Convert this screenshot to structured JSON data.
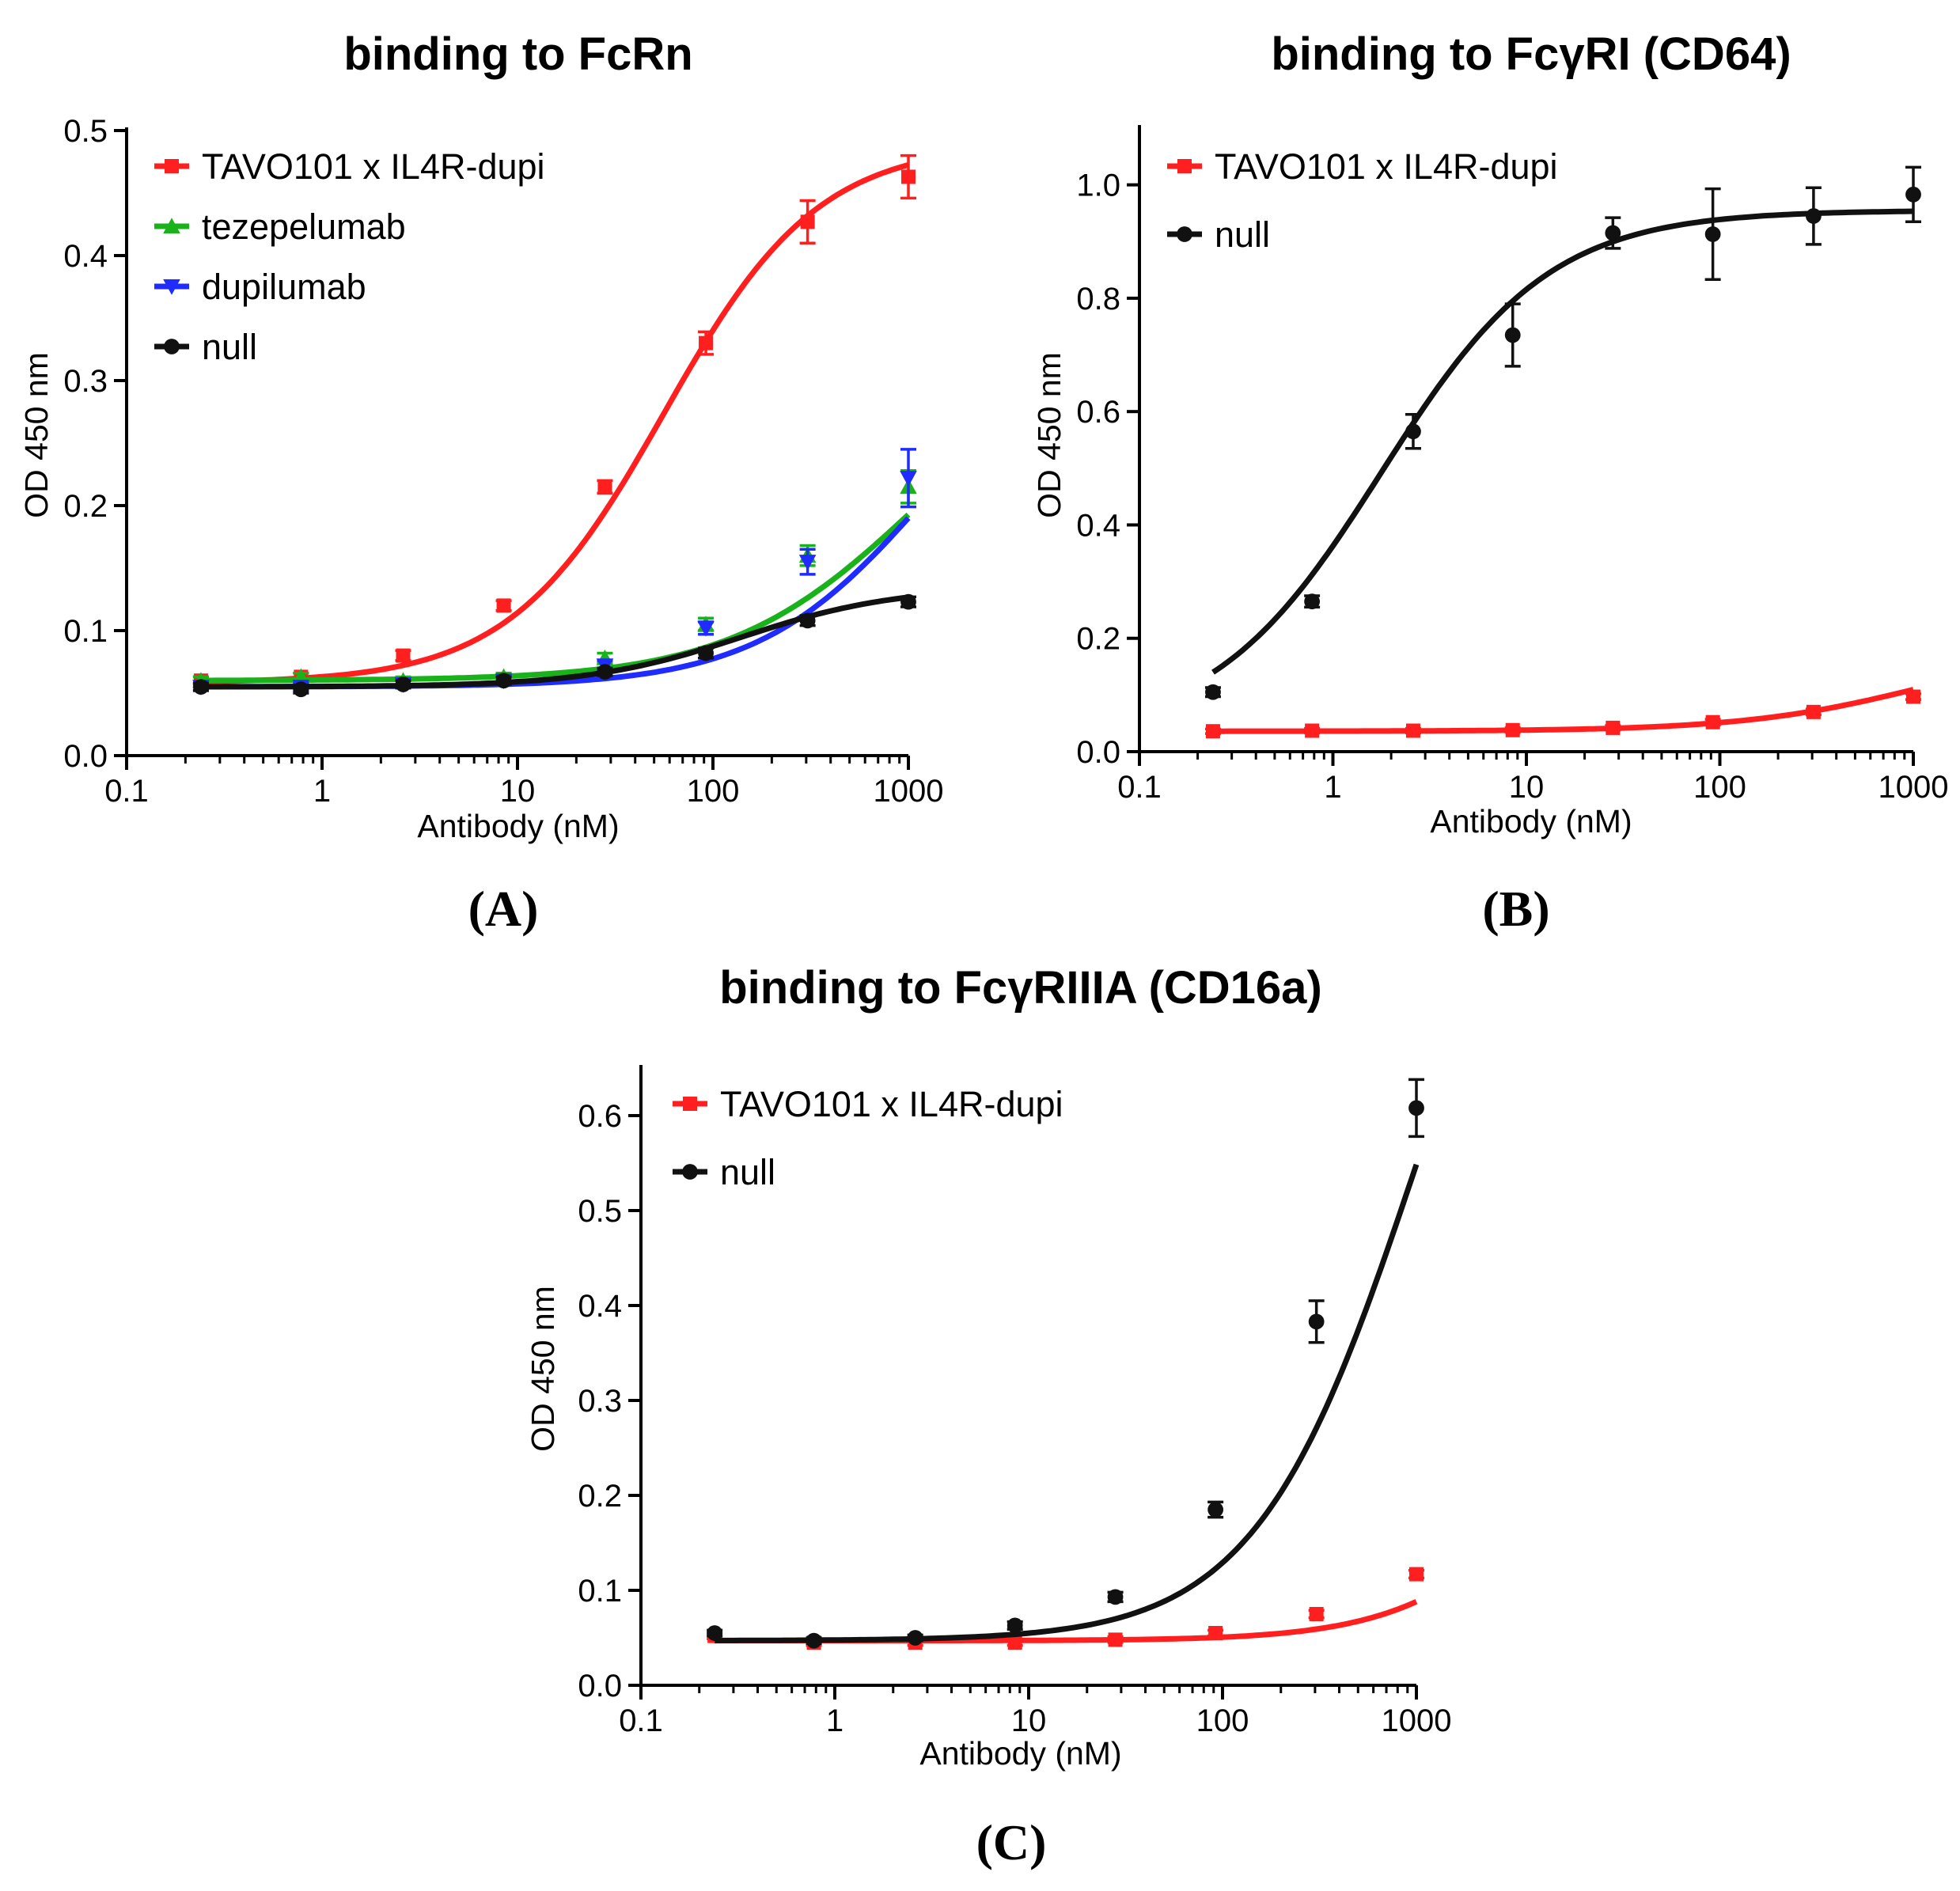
{
  "chart_data": [
    {
      "type": "line",
      "panel_label": "(A)",
      "title": "binding to FcRn",
      "xlabel": "Antibody (nM)",
      "ylabel": "OD 450 nm",
      "xscale": "log",
      "xlim": [
        0.1,
        1000
      ],
      "ylim": [
        0.0,
        0.5
      ],
      "xticks": [
        "0.1",
        "1",
        "10",
        "100",
        "1000"
      ],
      "yticks": [
        "0.0",
        "0.1",
        "0.2",
        "0.3",
        "0.4",
        "0.5"
      ],
      "ytick_values": [
        0,
        0.1,
        0.2,
        0.3,
        0.4,
        0.5
      ],
      "legend_position": "top-left",
      "x": [
        0.24,
        0.78,
        2.6,
        8.5,
        28,
        92,
        305,
        1000
      ],
      "series": [
        {
          "name": "TAVO101 x IL4R-dupi",
          "color": "#ff1f1f",
          "marker": "square",
          "values": [
            0.06,
            0.063,
            0.08,
            0.12,
            0.215,
            0.33,
            0.427,
            0.463
          ],
          "errors": [
            0.003,
            0.003,
            0.004,
            0.004,
            0.005,
            0.009,
            0.017,
            0.017
          ],
          "fit": {
            "bottom": 0.058,
            "top": 0.49,
            "logEC50": 1.75,
            "hill": 1.1
          }
        },
        {
          "name": "tezepelumab",
          "color": "#1ab21a",
          "marker": "triangle-up",
          "values": [
            0.06,
            0.063,
            0.06,
            0.063,
            0.078,
            0.105,
            0.16,
            0.215
          ],
          "errors": [
            0.003,
            0.003,
            0.003,
            0.003,
            0.004,
            0.005,
            0.008,
            0.013
          ],
          "fit": {
            "bottom": 0.06,
            "top": 0.34,
            "logEC50": 3.05,
            "hill": 0.9
          }
        },
        {
          "name": "dupilumab",
          "color": "#1f2bff",
          "marker": "triangle-down",
          "values": [
            0.055,
            0.055,
            0.057,
            0.06,
            0.072,
            0.102,
            0.155,
            0.222
          ],
          "errors": [
            0.003,
            0.003,
            0.003,
            0.003,
            0.004,
            0.005,
            0.01,
            0.023
          ],
          "fit": {
            "bottom": 0.055,
            "top": 0.36,
            "logEC50": 3.1,
            "hill": 1.0
          }
        },
        {
          "name": "null",
          "color": "#111111",
          "marker": "circle",
          "values": [
            0.055,
            0.053,
            0.057,
            0.06,
            0.067,
            0.082,
            0.108,
            0.123
          ],
          "errors": [
            0.003,
            0.003,
            0.003,
            0.003,
            0.003,
            0.004,
            0.004,
            0.004
          ],
          "fit": {
            "bottom": 0.055,
            "top": 0.135,
            "logEC50": 2.15,
            "hill": 1.1
          }
        }
      ]
    },
    {
      "type": "line",
      "panel_label": "(B)",
      "title": "binding to FcγRI (CD64)",
      "xlabel": "Antibody (nM)",
      "ylabel": "OD 450 nm",
      "xscale": "log",
      "xlim": [
        0.1,
        1000
      ],
      "ylim": [
        0.0,
        1.1
      ],
      "xticks": [
        "0.1",
        "1",
        "10",
        "100",
        "1000"
      ],
      "yticks": [
        "0.0",
        "0.2",
        "0.4",
        "0.6",
        "0.8",
        "1.0"
      ],
      "ytick_values": [
        0,
        0.2,
        0.4,
        0.6,
        0.8,
        1.0
      ],
      "legend_position": "top-left",
      "x": [
        0.24,
        0.78,
        2.6,
        8.5,
        28,
        92,
        305,
        1000
      ],
      "series": [
        {
          "name": "TAVO101 x IL4R-dupi",
          "color": "#ff1f1f",
          "marker": "square",
          "values": [
            0.036,
            0.037,
            0.037,
            0.038,
            0.042,
            0.052,
            0.07,
            0.097
          ],
          "errors": [
            0.004,
            0.004,
            0.004,
            0.004,
            0.004,
            0.005,
            0.005,
            0.005
          ],
          "fit": {
            "bottom": 0.036,
            "top": 0.2,
            "logEC50": 3.1,
            "hill": 0.9
          }
        },
        {
          "name": "null",
          "color": "#111111",
          "marker": "circle",
          "values": [
            0.105,
            0.265,
            0.565,
            0.735,
            0.915,
            0.913,
            0.945,
            0.983
          ],
          "errors": [
            0.008,
            0.01,
            0.03,
            0.055,
            0.027,
            0.08,
            0.05,
            0.048
          ],
          "fit": {
            "bottom": 0.03,
            "top": 0.955,
            "logEC50": 0.25,
            "hill": 1.0
          }
        }
      ]
    },
    {
      "type": "line",
      "panel_label": "(C)",
      "title": "binding to FcγRIIIA (CD16a)",
      "xlabel": "Antibody (nM)",
      "ylabel": "OD 450 nm",
      "xscale": "log",
      "xlim": [
        0.1,
        1000
      ],
      "ylim": [
        0.0,
        0.65
      ],
      "xticks": [
        "0.1",
        "1",
        "10",
        "100",
        "1000"
      ],
      "yticks": [
        "0.0",
        "0.1",
        "0.2",
        "0.3",
        "0.4",
        "0.5",
        "0.6"
      ],
      "ytick_values": [
        0,
        0.1,
        0.2,
        0.3,
        0.4,
        0.5,
        0.6
      ],
      "legend_position": "top-left",
      "x": [
        0.24,
        0.78,
        2.6,
        8.5,
        28,
        92,
        305,
        1000
      ],
      "series": [
        {
          "name": "TAVO101 x IL4R-dupi",
          "color": "#ff1f1f",
          "marker": "square",
          "values": [
            0.052,
            0.045,
            0.045,
            0.045,
            0.048,
            0.055,
            0.075,
            0.117
          ],
          "errors": [
            0.003,
            0.003,
            0.003,
            0.003,
            0.003,
            0.003,
            0.004,
            0.004
          ],
          "fit": {
            "bottom": 0.047,
            "top": 0.4,
            "logEC50": 3.8,
            "hill": 1.1
          }
        },
        {
          "name": "null",
          "color": "#111111",
          "marker": "circle",
          "values": [
            0.055,
            0.047,
            0.05,
            0.063,
            0.093,
            0.185,
            0.383,
            0.608
          ],
          "errors": [
            0.003,
            0.003,
            0.003,
            0.004,
            0.005,
            0.008,
            0.022,
            0.03
          ],
          "fit": {
            "bottom": 0.047,
            "top": 1.05,
            "logEC50": 3.0,
            "hill": 1.05
          }
        }
      ]
    }
  ]
}
